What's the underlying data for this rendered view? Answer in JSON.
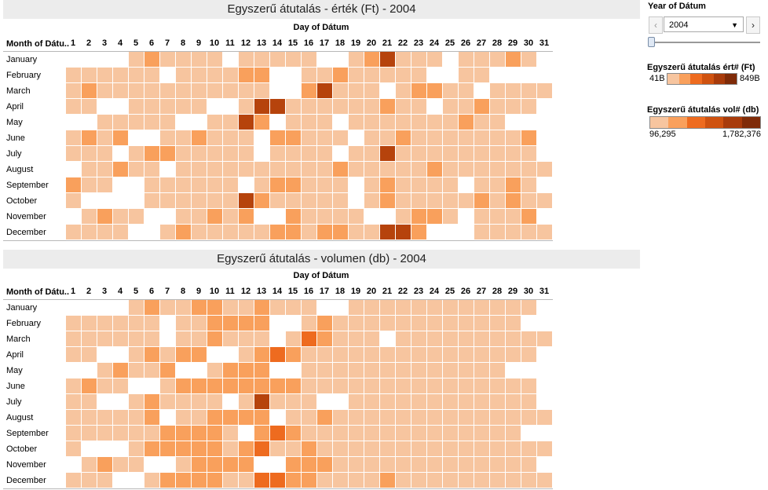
{
  "chart_data": [
    {
      "type": "heatmap",
      "title": "Egyszerű átutalás - érték (Ft) - 2004",
      "column_label": "Day of Dátum",
      "row_header": "Month of Dátu..",
      "rows": [
        "January",
        "February",
        "March",
        "April",
        "May",
        "June",
        "July",
        "August",
        "September",
        "October",
        "November",
        "December"
      ],
      "columns": [
        1,
        2,
        3,
        4,
        5,
        6,
        7,
        8,
        9,
        10,
        11,
        12,
        13,
        14,
        15,
        16,
        17,
        18,
        19,
        20,
        21,
        22,
        23,
        24,
        25,
        26,
        27,
        28,
        29,
        30,
        31
      ],
      "legend_title": "Egyszerű átutalás ért# (Ft)",
      "legend_min": "41B",
      "legend_max": "849B",
      "values": [
        [
          0,
          0,
          0,
          0,
          1,
          2,
          1,
          1,
          1,
          1,
          0,
          1,
          1,
          1,
          1,
          1,
          0,
          0,
          1,
          2,
          4,
          1,
          1,
          1,
          0,
          1,
          1,
          1,
          2,
          1,
          0
        ],
        [
          1,
          1,
          1,
          1,
          1,
          1,
          0,
          1,
          1,
          1,
          1,
          2,
          2,
          0,
          0,
          1,
          1,
          2,
          1,
          1,
          1,
          1,
          1,
          0,
          0,
          1,
          1,
          0,
          0,
          0,
          0
        ],
        [
          1,
          2,
          1,
          1,
          1,
          1,
          1,
          1,
          1,
          1,
          1,
          1,
          1,
          0,
          0,
          2,
          4,
          1,
          1,
          1,
          0,
          1,
          2,
          2,
          1,
          1,
          0,
          1,
          1,
          1,
          1
        ],
        [
          1,
          1,
          0,
          0,
          1,
          1,
          1,
          1,
          1,
          0,
          0,
          1,
          4,
          4,
          1,
          1,
          1,
          1,
          1,
          1,
          2,
          1,
          1,
          0,
          1,
          1,
          2,
          1,
          1,
          1,
          0
        ],
        [
          0,
          0,
          1,
          1,
          1,
          1,
          1,
          0,
          0,
          1,
          1,
          4,
          2,
          0,
          1,
          1,
          1,
          0,
          1,
          1,
          1,
          1,
          1,
          1,
          1,
          2,
          1,
          1,
          0,
          0,
          0
        ],
        [
          1,
          2,
          1,
          2,
          0,
          0,
          1,
          1,
          2,
          1,
          1,
          1,
          0,
          2,
          2,
          1,
          1,
          1,
          0,
          1,
          1,
          2,
          1,
          1,
          1,
          1,
          1,
          1,
          1,
          2,
          0
        ],
        [
          1,
          1,
          1,
          0,
          1,
          2,
          2,
          1,
          1,
          1,
          1,
          1,
          0,
          1,
          1,
          1,
          1,
          0,
          1,
          1,
          4,
          1,
          1,
          1,
          1,
          1,
          1,
          1,
          1,
          1,
          0
        ],
        [
          0,
          1,
          1,
          2,
          1,
          1,
          0,
          1,
          1,
          1,
          1,
          1,
          1,
          1,
          1,
          1,
          1,
          2,
          1,
          1,
          1,
          1,
          1,
          2,
          1,
          1,
          1,
          1,
          1,
          1,
          1
        ],
        [
          2,
          1,
          1,
          0,
          0,
          1,
          1,
          1,
          1,
          1,
          1,
          0,
          1,
          2,
          2,
          1,
          1,
          1,
          0,
          1,
          2,
          1,
          1,
          1,
          1,
          0,
          1,
          1,
          2,
          1,
          0
        ],
        [
          1,
          0,
          0,
          0,
          0,
          1,
          1,
          1,
          1,
          1,
          1,
          4,
          2,
          1,
          1,
          1,
          1,
          1,
          0,
          1,
          2,
          1,
          1,
          1,
          1,
          1,
          2,
          1,
          2,
          1,
          1
        ],
        [
          0,
          1,
          2,
          1,
          1,
          0,
          0,
          1,
          1,
          2,
          1,
          2,
          0,
          0,
          2,
          1,
          1,
          1,
          1,
          0,
          0,
          1,
          2,
          2,
          1,
          0,
          1,
          1,
          1,
          2,
          0
        ],
        [
          1,
          1,
          1,
          1,
          0,
          0,
          1,
          2,
          1,
          1,
          1,
          1,
          1,
          2,
          2,
          1,
          2,
          2,
          1,
          1,
          4,
          4,
          2,
          0,
          0,
          0,
          1,
          1,
          1,
          1,
          1
        ]
      ]
    },
    {
      "type": "heatmap",
      "title": "Egyszerű átutalás - volumen (db) - 2004",
      "column_label": "Day of Dátum",
      "row_header": "Month of Dátu..",
      "rows": [
        "January",
        "February",
        "March",
        "April",
        "May",
        "June",
        "July",
        "August",
        "September",
        "October",
        "November",
        "December"
      ],
      "columns": [
        1,
        2,
        3,
        4,
        5,
        6,
        7,
        8,
        9,
        10,
        11,
        12,
        13,
        14,
        15,
        16,
        17,
        18,
        19,
        20,
        21,
        22,
        23,
        24,
        25,
        26,
        27,
        28,
        29,
        30,
        31
      ],
      "legend_title": "Egyszerű átutalás vol# (db)",
      "legend_min": "96,295",
      "legend_max": "1,782,376",
      "values": [
        [
          0,
          0,
          0,
          0,
          1,
          2,
          1,
          1,
          2,
          2,
          1,
          1,
          2,
          1,
          1,
          1,
          0,
          0,
          1,
          1,
          1,
          1,
          1,
          1,
          1,
          1,
          1,
          1,
          1,
          1,
          0
        ],
        [
          1,
          1,
          1,
          1,
          1,
          1,
          0,
          1,
          1,
          2,
          2,
          2,
          2,
          0,
          0,
          1,
          2,
          1,
          1,
          1,
          1,
          1,
          1,
          1,
          1,
          1,
          1,
          1,
          1,
          0,
          0
        ],
        [
          1,
          1,
          1,
          1,
          1,
          1,
          0,
          1,
          1,
          2,
          1,
          1,
          1,
          0,
          1,
          3,
          2,
          1,
          1,
          1,
          0,
          1,
          1,
          1,
          1,
          1,
          1,
          1,
          1,
          1,
          1
        ],
        [
          1,
          1,
          0,
          0,
          1,
          2,
          1,
          2,
          2,
          0,
          0,
          1,
          2,
          3,
          2,
          1,
          1,
          1,
          1,
          1,
          1,
          1,
          1,
          1,
          1,
          1,
          1,
          1,
          1,
          1,
          0
        ],
        [
          0,
          0,
          1,
          2,
          1,
          1,
          2,
          0,
          0,
          1,
          2,
          2,
          2,
          0,
          0,
          1,
          1,
          1,
          1,
          1,
          1,
          1,
          1,
          1,
          1,
          1,
          1,
          1,
          0,
          0,
          0
        ],
        [
          1,
          2,
          1,
          1,
          0,
          0,
          1,
          2,
          2,
          2,
          2,
          2,
          2,
          2,
          2,
          1,
          1,
          1,
          1,
          1,
          1,
          1,
          1,
          1,
          1,
          1,
          1,
          1,
          1,
          1,
          0
        ],
        [
          1,
          1,
          0,
          0,
          1,
          2,
          1,
          1,
          1,
          1,
          0,
          1,
          4,
          1,
          1,
          1,
          0,
          0,
          1,
          1,
          1,
          1,
          1,
          1,
          1,
          1,
          1,
          1,
          1,
          1,
          0
        ],
        [
          1,
          1,
          1,
          1,
          1,
          2,
          0,
          1,
          1,
          2,
          2,
          2,
          2,
          0,
          1,
          1,
          2,
          1,
          1,
          1,
          1,
          1,
          1,
          1,
          1,
          1,
          1,
          1,
          1,
          1,
          1
        ],
        [
          1,
          1,
          1,
          1,
          1,
          1,
          2,
          2,
          2,
          2,
          1,
          0,
          2,
          3,
          2,
          1,
          1,
          1,
          1,
          1,
          1,
          1,
          1,
          1,
          1,
          1,
          1,
          1,
          1,
          0,
          0
        ],
        [
          1,
          0,
          0,
          0,
          1,
          2,
          2,
          2,
          2,
          2,
          1,
          2,
          3,
          1,
          1,
          2,
          1,
          1,
          1,
          1,
          1,
          1,
          1,
          1,
          1,
          1,
          1,
          1,
          1,
          1,
          1
        ],
        [
          0,
          1,
          2,
          1,
          1,
          0,
          0,
          1,
          2,
          2,
          2,
          2,
          0,
          0,
          2,
          2,
          2,
          1,
          1,
          1,
          1,
          1,
          1,
          1,
          1,
          1,
          1,
          1,
          1,
          1,
          0
        ],
        [
          1,
          1,
          1,
          0,
          0,
          1,
          2,
          2,
          2,
          2,
          1,
          1,
          3,
          3,
          2,
          2,
          1,
          1,
          1,
          1,
          2,
          1,
          1,
          1,
          1,
          1,
          1,
          1,
          1,
          1,
          1
        ]
      ]
    }
  ],
  "color_scale": [
    "#ffffff",
    "#f7c59f",
    "#f9a05c",
    "#ee6b1f",
    "#b6430c"
  ],
  "legend_ramp_value": [
    "#f7c59f",
    "#f9a05c",
    "#ee6b1f",
    "#cf5210",
    "#a83b0b",
    "#7f2b08"
  ],
  "legend_ramp_volume": [
    "#f7c59f",
    "#f9a05c",
    "#ee6b1f",
    "#cf5210",
    "#a83b0b",
    "#7f2b08"
  ],
  "filter": {
    "title": "Year of Dátum",
    "selected": "2004",
    "prev_symbol": "‹",
    "next_symbol": "›",
    "dropdown_symbol": "▼"
  }
}
